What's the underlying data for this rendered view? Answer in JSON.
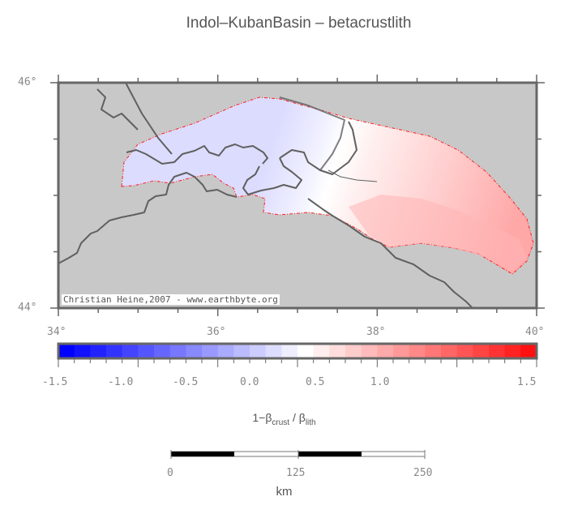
{
  "title": "Indol–KubanBasin – betacrustlith",
  "map": {
    "lon_range": [
      34,
      40
    ],
    "lat_range": [
      44,
      46
    ],
    "lon_labels": [
      "34°",
      "36°",
      "38°",
      "40°"
    ],
    "lat_labels": [
      "46°",
      "44°"
    ],
    "land_color": "#c8c8c8",
    "coast_color": "#606060",
    "outline_color": "#ff0000",
    "credit": "Christian Heine,2007 - www.earthbyte.org"
  },
  "colorbar": {
    "range": [
      -1.5,
      1.5
    ],
    "step": 0.1,
    "tick_labels": [
      "-1.5",
      "-1.0",
      "-0.5",
      "0.0",
      "0.5",
      "1.0",
      "1.5"
    ],
    "label_prefix": "1−β",
    "label_sub1": "crust",
    "label_mid": " / β",
    "label_sub2": "lith",
    "low_color": "#0000ff",
    "mid_color": "#ffffff",
    "high_color": "#ff0000"
  },
  "scalebar": {
    "labels": [
      "0",
      "125",
      "250"
    ],
    "unit": "km"
  }
}
